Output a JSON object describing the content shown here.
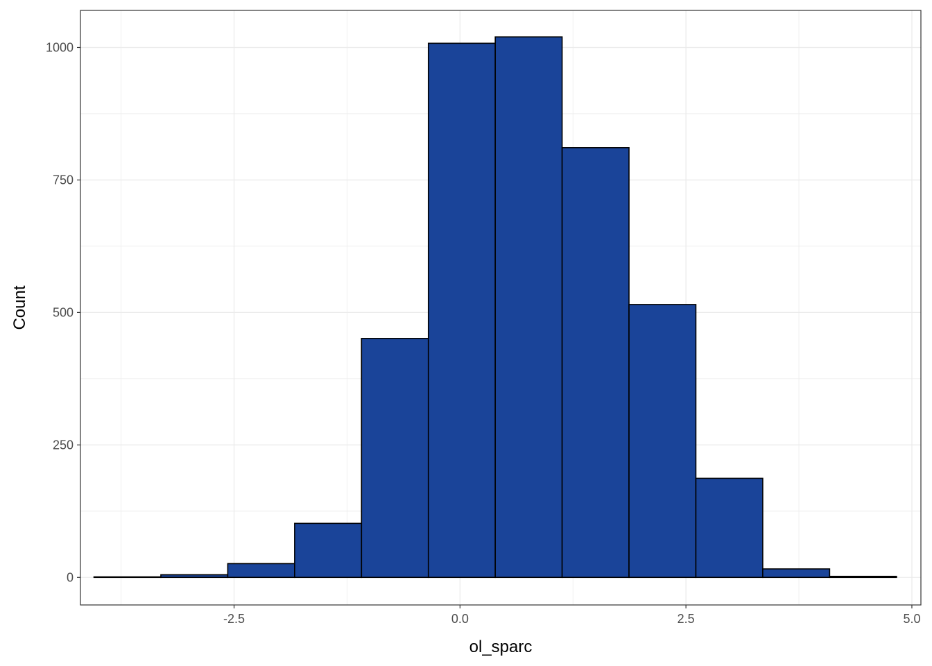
{
  "chart_data": {
    "type": "bar",
    "title": "",
    "xlabel": "ol_sparc",
    "ylabel": "Count",
    "xlim": [
      -4.2,
      5.1
    ],
    "ylim": [
      -52,
      1070
    ],
    "grid": true,
    "legend": "none",
    "x_ticks": [
      -2.5,
      0.0,
      2.5,
      5.0
    ],
    "x_tick_labels": [
      "-2.5",
      "0.0",
      "2.5",
      "5.0"
    ],
    "y_ticks": [
      0,
      250,
      500,
      750,
      1000
    ],
    "y_tick_labels": [
      "0",
      "250",
      "500",
      "750",
      "1000"
    ],
    "bin_edges": [
      -4.05,
      -3.31,
      -2.57,
      -1.83,
      -1.09,
      -0.35,
      0.39,
      1.13,
      1.87,
      2.61,
      3.35,
      4.09,
      4.83
    ],
    "counts": [
      1,
      5,
      26,
      102,
      451,
      1008,
      1020,
      811,
      515,
      187,
      16,
      2
    ],
    "colors": {
      "fill": "#1a4499",
      "outline": "#000000",
      "grid": "#ebebeb",
      "panel_border": "#333333"
    }
  }
}
